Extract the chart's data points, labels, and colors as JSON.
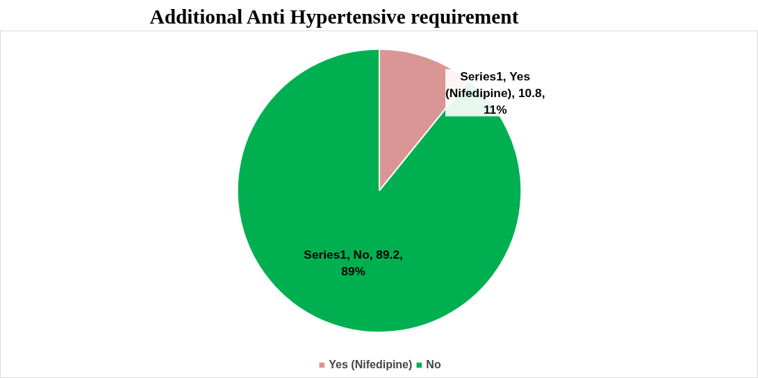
{
  "chart_data": {
    "type": "pie",
    "title": "Additional Anti Hypertensive requirement",
    "categories": [
      "Yes (Nifedipine)",
      "No"
    ],
    "values": [
      10.8,
      89.2
    ],
    "colors": [
      "#d99694",
      "#00b050"
    ],
    "value_labels": [
      "Series1, Yes (Nifedipine), 10.8, 11%",
      "Series1, No, 89.2, 89%"
    ],
    "legend": "bottom"
  }
}
